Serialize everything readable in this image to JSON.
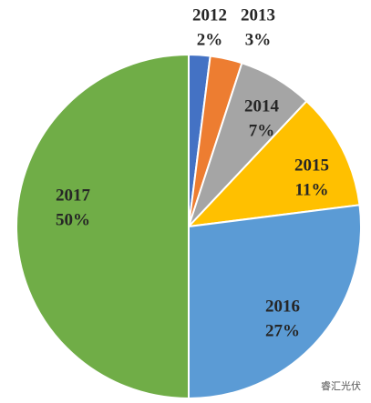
{
  "chart_data": {
    "type": "pie",
    "categories": [
      "2012",
      "2013",
      "2014",
      "2015",
      "2016",
      "2017"
    ],
    "values": [
      2,
      3,
      7,
      11,
      27,
      50
    ],
    "value_labels": [
      "2%",
      "3%",
      "7%",
      "11%",
      "27%",
      "50%"
    ],
    "colors": [
      "#4472c4",
      "#ed7d31",
      "#a5a5a5",
      "#ffc000",
      "#5b9bd5",
      "#70ad47"
    ],
    "watermark": "睿汇光伏"
  }
}
